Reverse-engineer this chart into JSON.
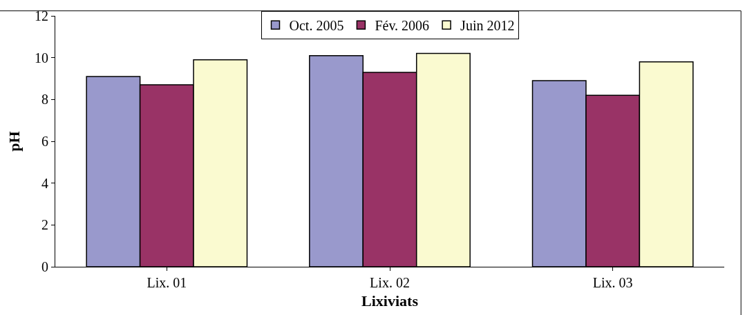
{
  "chart_data": {
    "type": "bar",
    "xlabel": "Lixiviats",
    "ylabel": "pH",
    "categories": [
      "Lix. 01",
      "Lix. 02",
      "Lix. 03"
    ],
    "series": [
      {
        "name": "Oct. 2005",
        "color": "#9999cc",
        "values": [
          9.1,
          10.1,
          8.9
        ]
      },
      {
        "name": "Fév. 2006",
        "color": "#993366",
        "values": [
          8.7,
          9.3,
          8.2
        ]
      },
      {
        "name": "Juin 2012",
        "color": "#fafad0",
        "values": [
          9.9,
          10.2,
          9.8
        ]
      }
    ],
    "ylim": [
      0,
      12
    ],
    "yticks": [
      0,
      2,
      4,
      6,
      8,
      10,
      12
    ],
    "grid": false,
    "legend": "top"
  }
}
